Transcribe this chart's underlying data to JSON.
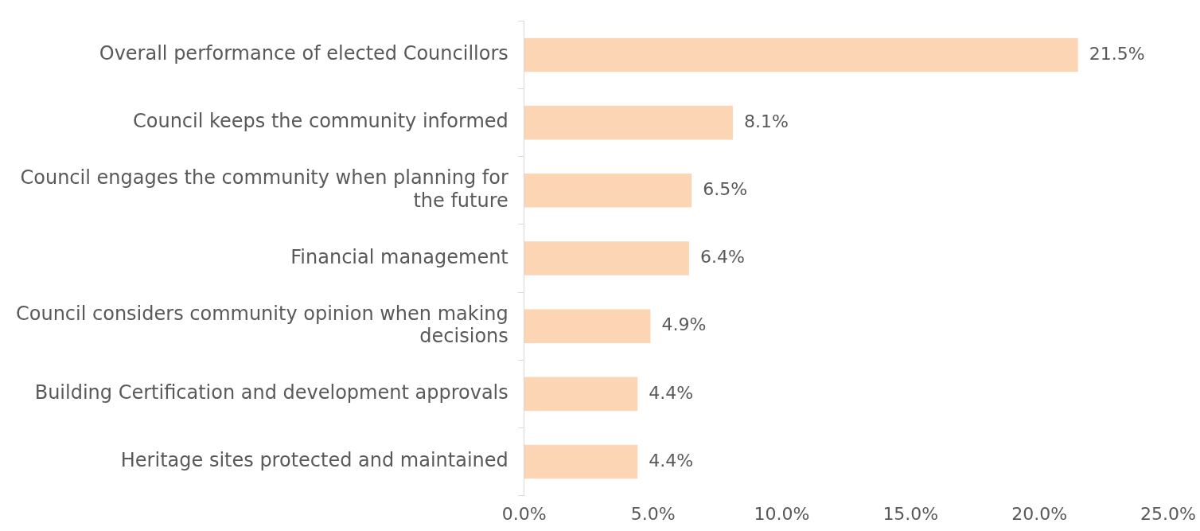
{
  "chart_data": {
    "type": "bar",
    "orientation": "horizontal",
    "categories": [
      "Overall performance of elected Councillors",
      "Council keeps the community informed",
      "Council engages the community when planning for the future",
      "Financial management",
      "Council considers community opinion when making decisions",
      "Building Certification and development approvals",
      "Heritage sites protected and maintained"
    ],
    "values": [
      21.5,
      8.1,
      6.5,
      6.4,
      4.9,
      4.4,
      4.4
    ],
    "value_labels": [
      "21.5%",
      "8.1%",
      "6.5%",
      "6.4%",
      "4.9%",
      "4.4%",
      "4.4%"
    ],
    "color": "#fcd5b4",
    "xlim": [
      0,
      25
    ],
    "xticks": [
      {
        "value": 0,
        "label": "0.0%"
      },
      {
        "value": 5,
        "label": "5.0%"
      },
      {
        "value": 10,
        "label": "10.0%"
      },
      {
        "value": 15,
        "label": "15.0%"
      },
      {
        "value": 20,
        "label": "20.0%"
      },
      {
        "value": 25,
        "label": "25.0%"
      }
    ],
    "grid": false,
    "legend": false
  }
}
